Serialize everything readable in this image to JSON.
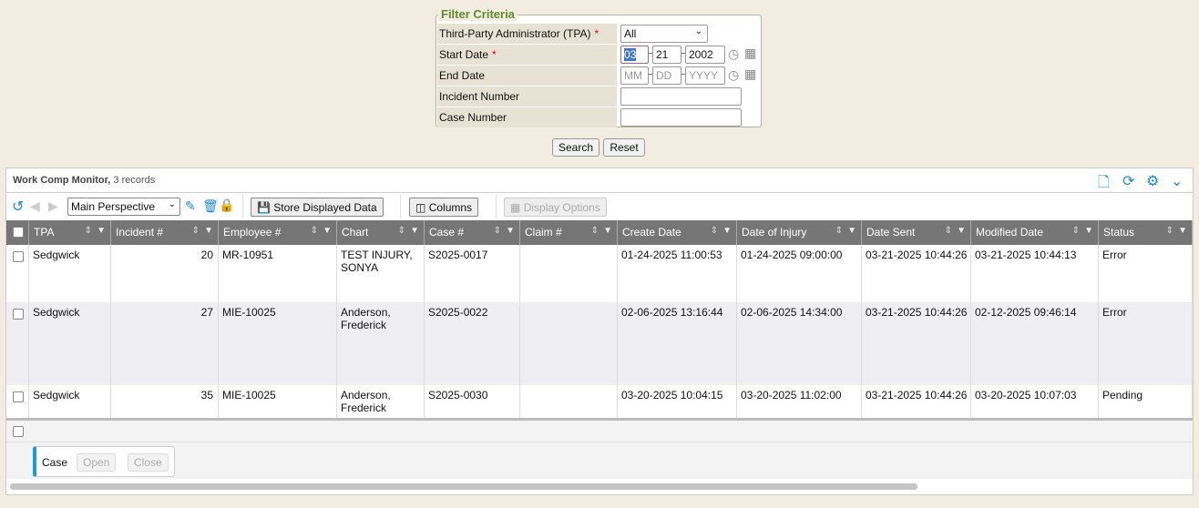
{
  "filter": {
    "legend": "Filter Criteria",
    "tpa_label": "Third-Party Administrator (TPA)",
    "tpa_value": "All",
    "start_label": "Start Date",
    "start_mm": "03",
    "start_dd": "21",
    "start_yyyy": "2002",
    "end_label": "End Date",
    "end_mm_ph": "MM",
    "end_dd_ph": "DD",
    "end_yyyy_ph": "YYYY",
    "incident_label": "Incident Number",
    "incident_value": "",
    "case_label": "Case Number",
    "case_value": "",
    "required_mark": "*",
    "search": "Search",
    "reset": "Reset"
  },
  "panel": {
    "title": "Work Comp Monitor,",
    "count": "3 records",
    "perspective": "Main Perspective",
    "store": "Store Displayed Data",
    "columns": "Columns",
    "display_options": "Display Options",
    "accent": "#1a8bd0"
  },
  "columns": [
    "TPA",
    "Incident #",
    "Employee #",
    "Chart",
    "Case #",
    "Claim #",
    "Create Date",
    "Date of Injury",
    "Date Sent",
    "Modified Date",
    "Status"
  ],
  "rows": [
    [
      "Sedgwick",
      "20",
      "MR-10951",
      "TEST INJURY, SONYA",
      "S2025-0017",
      "",
      "01-24-2025 11:00:53",
      "01-24-2025 09:00:00",
      "03-21-2025 10:44:26",
      "03-21-2025 10:44:13",
      "Error"
    ],
    [
      "Sedgwick",
      "27",
      "MIE-10025",
      "Anderson, Frederick",
      "S2025-0022",
      "",
      "02-06-2025 13:16:44",
      "02-06-2025 14:34:00",
      "03-21-2025 10:44:26",
      "02-12-2025 09:46:14",
      "Error"
    ],
    [
      "Sedgwick",
      "35",
      "MIE-10025",
      "Anderson, Frederick",
      "S2025-0030",
      "",
      "03-20-2025 10:04:15",
      "03-20-2025 11:02:00",
      "03-21-2025 10:44:26",
      "03-20-2025 10:07:03",
      "Pending"
    ]
  ],
  "actions": {
    "label": "Case",
    "open": "Open",
    "close": "Close"
  }
}
